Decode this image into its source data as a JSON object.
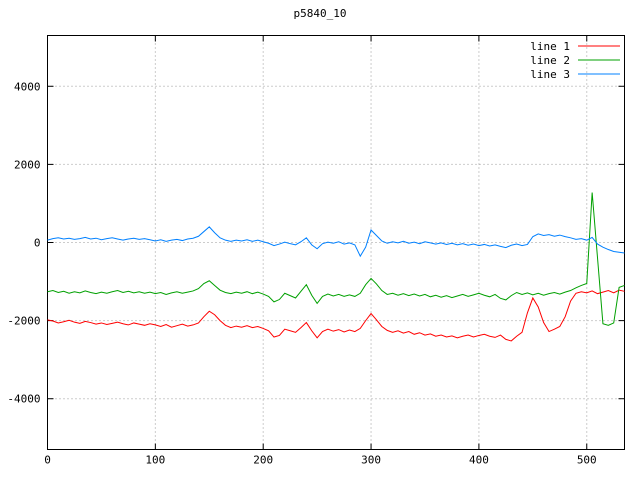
{
  "chart_data": {
    "type": "line",
    "title": "p5840_10",
    "xlabel": "",
    "ylabel": "",
    "xlim": [
      0,
      535
    ],
    "ylim": [
      -5300,
      5300
    ],
    "x_ticks": [
      0,
      100,
      200,
      300,
      400,
      500
    ],
    "y_ticks": [
      -4000,
      -2000,
      0,
      2000,
      4000
    ],
    "grid": true,
    "grid_style": "dotted",
    "legend_position": "top-right-inside",
    "background": "#ffffff",
    "grid_color": "#9a9a9a",
    "border_color": "#000000",
    "x_step": 5,
    "series": [
      {
        "name": "line 1",
        "color": "#ff0000",
        "values": [
          -1980,
          -2010,
          -2060,
          -2030,
          -1990,
          -2040,
          -2070,
          -2020,
          -2050,
          -2090,
          -2060,
          -2100,
          -2070,
          -2040,
          -2080,
          -2110,
          -2060,
          -2090,
          -2120,
          -2080,
          -2110,
          -2150,
          -2100,
          -2170,
          -2130,
          -2090,
          -2140,
          -2110,
          -2060,
          -1900,
          -1760,
          -1850,
          -2000,
          -2120,
          -2180,
          -2140,
          -2170,
          -2130,
          -2180,
          -2150,
          -2200,
          -2260,
          -2420,
          -2380,
          -2220,
          -2260,
          -2300,
          -2180,
          -2050,
          -2260,
          -2440,
          -2280,
          -2220,
          -2270,
          -2230,
          -2290,
          -2240,
          -2280,
          -2200,
          -2000,
          -1820,
          -1980,
          -2150,
          -2250,
          -2300,
          -2260,
          -2320,
          -2280,
          -2350,
          -2310,
          -2370,
          -2340,
          -2400,
          -2370,
          -2420,
          -2390,
          -2440,
          -2400,
          -2370,
          -2420,
          -2380,
          -2350,
          -2400,
          -2430,
          -2370,
          -2480,
          -2520,
          -2400,
          -2300,
          -1800,
          -1420,
          -1650,
          -2050,
          -2280,
          -2220,
          -2150,
          -1900,
          -1500,
          -1300,
          -1260,
          -1290,
          -1240,
          -1310,
          -1270,
          -1230,
          -1290,
          -1220,
          -1250
        ]
      },
      {
        "name": "line 2",
        "color": "#00a000",
        "values": [
          -1260,
          -1230,
          -1280,
          -1250,
          -1300,
          -1260,
          -1290,
          -1240,
          -1280,
          -1310,
          -1270,
          -1300,
          -1260,
          -1230,
          -1280,
          -1250,
          -1290,
          -1260,
          -1300,
          -1270,
          -1310,
          -1280,
          -1330,
          -1290,
          -1260,
          -1300,
          -1270,
          -1240,
          -1180,
          -1050,
          -980,
          -1100,
          -1220,
          -1280,
          -1310,
          -1270,
          -1300,
          -1260,
          -1310,
          -1270,
          -1320,
          -1380,
          -1520,
          -1460,
          -1300,
          -1360,
          -1420,
          -1250,
          -1080,
          -1350,
          -1560,
          -1380,
          -1320,
          -1370,
          -1330,
          -1380,
          -1340,
          -1380,
          -1300,
          -1080,
          -920,
          -1060,
          -1230,
          -1330,
          -1300,
          -1350,
          -1310,
          -1360,
          -1320,
          -1370,
          -1330,
          -1390,
          -1350,
          -1400,
          -1360,
          -1410,
          -1370,
          -1330,
          -1380,
          -1340,
          -1300,
          -1350,
          -1390,
          -1330,
          -1430,
          -1470,
          -1360,
          -1280,
          -1330,
          -1290,
          -1340,
          -1300,
          -1350,
          -1310,
          -1280,
          -1320,
          -1270,
          -1230,
          -1160,
          -1100,
          -1050,
          1280,
          -400,
          -2080,
          -2120,
          -2060,
          -1150,
          -1100
        ]
      },
      {
        "name": "line 3",
        "color": "#0080ff",
        "values": [
          60,
          100,
          120,
          90,
          110,
          80,
          100,
          130,
          90,
          110,
          70,
          100,
          120,
          90,
          60,
          90,
          110,
          80,
          100,
          70,
          40,
          70,
          30,
          60,
          80,
          50,
          90,
          110,
          160,
          280,
          400,
          250,
          120,
          60,
          30,
          60,
          40,
          70,
          30,
          60,
          20,
          -20,
          -80,
          -40,
          10,
          -30,
          -60,
          20,
          120,
          -60,
          -160,
          -30,
          10,
          -20,
          20,
          -40,
          -10,
          -60,
          -350,
          -120,
          320,
          180,
          40,
          -20,
          20,
          -10,
          30,
          -20,
          10,
          -30,
          20,
          -10,
          -40,
          -10,
          -50,
          -20,
          -60,
          -30,
          -70,
          -40,
          -80,
          -50,
          -90,
          -60,
          -100,
          -130,
          -70,
          -40,
          -80,
          -50,
          150,
          220,
          180,
          200,
          160,
          190,
          150,
          120,
          80,
          100,
          60,
          130,
          -40,
          -120,
          -180,
          -230,
          -250,
          -270
        ]
      }
    ]
  }
}
